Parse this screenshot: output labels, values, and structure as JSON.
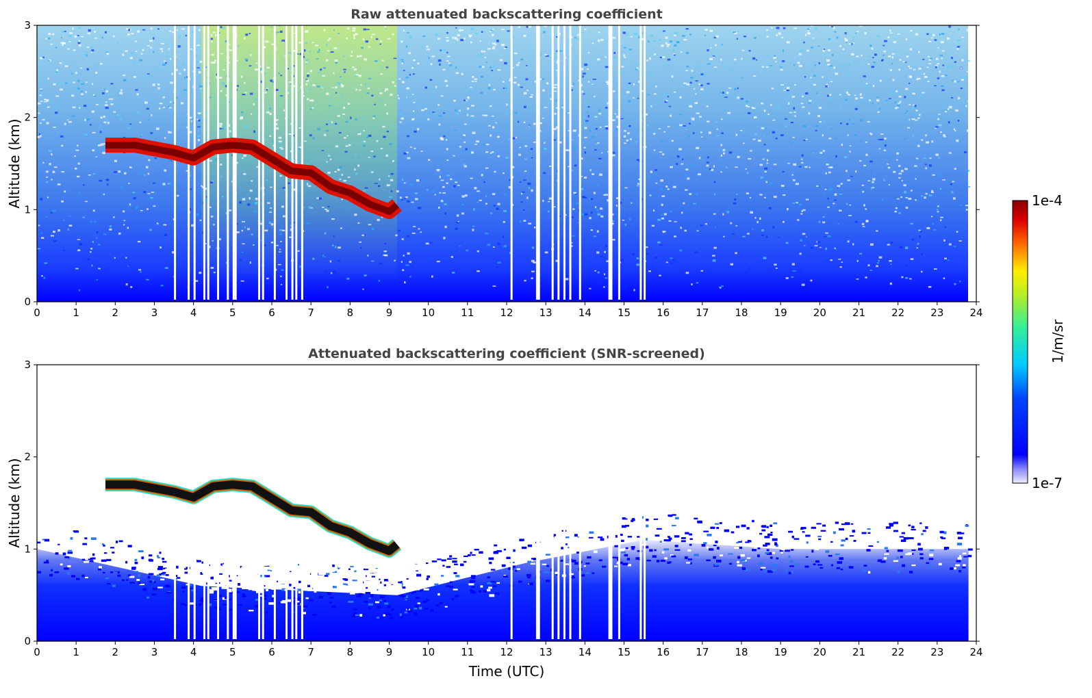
{
  "chart_data": [
    {
      "type": "heatmap",
      "title": "Raw attenuated backscattering coefficient",
      "xlabel": "",
      "ylabel": "Altitude (km)",
      "xlim": [
        0,
        24
      ],
      "ylim": [
        0,
        3
      ],
      "xticks": [
        "0",
        "1",
        "2",
        "3",
        "4",
        "5",
        "6",
        "7",
        "8",
        "9",
        "10",
        "11",
        "12",
        "13",
        "14",
        "15",
        "16",
        "17",
        "18",
        "19",
        "20",
        "21",
        "22",
        "23",
        "24"
      ],
      "yticks": [
        "0",
        "1",
        "2",
        "3"
      ],
      "colorscale": "jet, log scale",
      "data_extent_hours": [
        0,
        23.8
      ],
      "cloud_layer": {
        "time_utc": [
          1.75,
          2.5,
          3.0,
          3.5,
          4.0,
          4.5,
          5.0,
          5.5,
          6.0,
          6.5,
          7.0,
          7.5,
          8.0,
          8.5,
          9.0,
          9.2
        ],
        "altitude_km": [
          1.7,
          1.7,
          1.66,
          1.62,
          1.56,
          1.68,
          1.7,
          1.68,
          1.55,
          1.42,
          1.4,
          1.25,
          1.18,
          1.06,
          0.98,
          1.05
        ]
      },
      "boundary_layer_top_km": 0.5,
      "enhanced_background": {
        "time_utc": [
          4.2,
          9.2
        ]
      },
      "missing_data_gaps_utc": [
        3.5,
        3.85,
        4.0,
        4.25,
        4.35,
        4.6,
        4.85,
        5.0,
        5.05,
        5.65,
        5.75,
        6.05,
        6.35,
        6.5,
        6.6,
        6.75,
        12.1,
        12.75,
        12.8,
        13.15,
        13.3,
        13.45,
        13.6,
        13.85,
        14.6,
        14.65,
        14.85,
        15.4,
        15.5
      ]
    },
    {
      "type": "heatmap",
      "title": "Attenuated backscattering coefficient (SNR-screened)",
      "xlabel": "Time (UTC)",
      "ylabel": "Altitude (km)",
      "xlim": [
        0,
        24
      ],
      "ylim": [
        0,
        3
      ],
      "xticks": [
        "0",
        "1",
        "2",
        "3",
        "4",
        "5",
        "6",
        "7",
        "8",
        "9",
        "10",
        "11",
        "12",
        "13",
        "14",
        "15",
        "16",
        "17",
        "18",
        "19",
        "20",
        "21",
        "22",
        "23",
        "24"
      ],
      "yticks": [
        "0",
        "1",
        "2",
        "3"
      ],
      "colorscale": "jet, log scale",
      "data_extent_hours": [
        0,
        23.8
      ],
      "cloud_layer": {
        "time_utc": [
          1.75,
          2.5,
          3.0,
          3.5,
          4.0,
          4.5,
          5.0,
          5.5,
          6.0,
          6.5,
          7.0,
          7.5,
          8.0,
          8.5,
          9.0,
          9.2
        ],
        "altitude_km": [
          1.7,
          1.7,
          1.66,
          1.62,
          1.56,
          1.68,
          1.7,
          1.68,
          1.55,
          1.42,
          1.4,
          1.25,
          1.18,
          1.06,
          0.98,
          1.05
        ]
      },
      "boundary_layer_top_km": [
        {
          "time_utc": 0,
          "altitude_km": 1.0
        },
        {
          "time_utc": 4.2,
          "altitude_km": 0.6
        },
        {
          "time_utc": 9.2,
          "altitude_km": 0.5
        },
        {
          "time_utc": 12.5,
          "altitude_km": 0.85
        },
        {
          "time_utc": 15.5,
          "altitude_km": 1.1
        },
        {
          "time_utc": 19.0,
          "altitude_km": 1.0
        },
        {
          "time_utc": 23.8,
          "altitude_km": 1.0
        }
      ]
    }
  ],
  "colorbar": {
    "label": "1/m/sr",
    "max_label": "1e-4",
    "min_label": "1e-7",
    "range": [
      1e-07,
      0.0001
    ],
    "scale": "log"
  }
}
